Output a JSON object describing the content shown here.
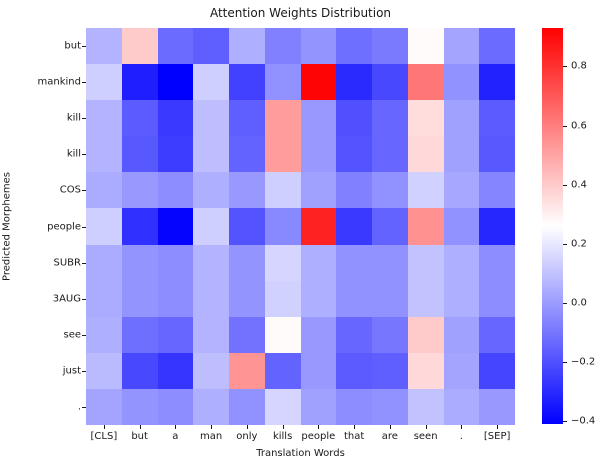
{
  "chart_data": {
    "type": "heatmap",
    "title": "Attention Weights Distribution",
    "xlabel": "Translation Words",
    "ylabel": "Predicted Morphemes",
    "x_categories": [
      "[CLS]",
      "but",
      "a",
      "man",
      "only",
      "kills",
      "people",
      "that",
      "are",
      "seen",
      ".",
      "[SEP]"
    ],
    "y_categories": [
      "but",
      "mankind",
      "kill",
      "kill",
      "COS",
      "people",
      "SUBR",
      "3AUG",
      "see",
      "just",
      "."
    ],
    "values": [
      [
        0.06,
        0.4,
        -0.13,
        -0.16,
        0.05,
        -0.07,
        -0.02,
        -0.12,
        -0.09,
        0.27,
        0.02,
        -0.13
      ],
      [
        0.13,
        -0.33,
        -0.41,
        0.13,
        -0.24,
        -0.03,
        0.92,
        -0.3,
        -0.22,
        0.62,
        -0.03,
        -0.32
      ],
      [
        0.06,
        -0.17,
        -0.26,
        0.09,
        -0.16,
        0.52,
        -0.01,
        -0.2,
        -0.14,
        0.35,
        0.01,
        -0.17
      ],
      [
        0.06,
        -0.18,
        -0.25,
        0.09,
        -0.15,
        0.52,
        -0.01,
        -0.19,
        -0.14,
        0.36,
        0.01,
        -0.18
      ],
      [
        0.04,
        -0.01,
        -0.04,
        0.05,
        -0.01,
        0.13,
        0.01,
        -0.07,
        -0.03,
        0.14,
        0.03,
        -0.06
      ],
      [
        0.13,
        -0.28,
        -0.4,
        0.13,
        -0.19,
        -0.05,
        0.84,
        -0.26,
        -0.15,
        0.55,
        -0.03,
        -0.31
      ],
      [
        0.04,
        -0.02,
        -0.04,
        0.06,
        -0.02,
        0.15,
        0.05,
        -0.03,
        -0.03,
        0.1,
        0.05,
        -0.04
      ],
      [
        0.04,
        -0.02,
        -0.04,
        0.06,
        -0.02,
        0.14,
        0.05,
        -0.03,
        -0.03,
        0.1,
        0.05,
        -0.04
      ],
      [
        0.05,
        -0.12,
        -0.14,
        0.06,
        -0.11,
        0.27,
        -0.01,
        -0.14,
        -0.1,
        0.4,
        0.01,
        -0.14
      ],
      [
        0.08,
        -0.22,
        -0.27,
        0.09,
        0.54,
        -0.15,
        -0.01,
        -0.17,
        -0.16,
        0.36,
        0.02,
        -0.23
      ],
      [
        0.02,
        -0.02,
        -0.04,
        0.05,
        -0.03,
        0.15,
        0.01,
        -0.04,
        -0.03,
        0.1,
        0.04,
        -0.01
      ]
    ],
    "colormap": "bwr",
    "vmin": -0.41,
    "vmax": 0.93,
    "grid": false,
    "legend_position": "right-colorbar",
    "colorbar": {
      "ticks": [
        0.8,
        0.6,
        0.4,
        0.2,
        0.0,
        -0.2,
        -0.4
      ],
      "tick_labels": [
        "0.8",
        "0.6",
        "0.4",
        "0.2",
        "0.0",
        "−0.2",
        "−0.4"
      ]
    }
  }
}
